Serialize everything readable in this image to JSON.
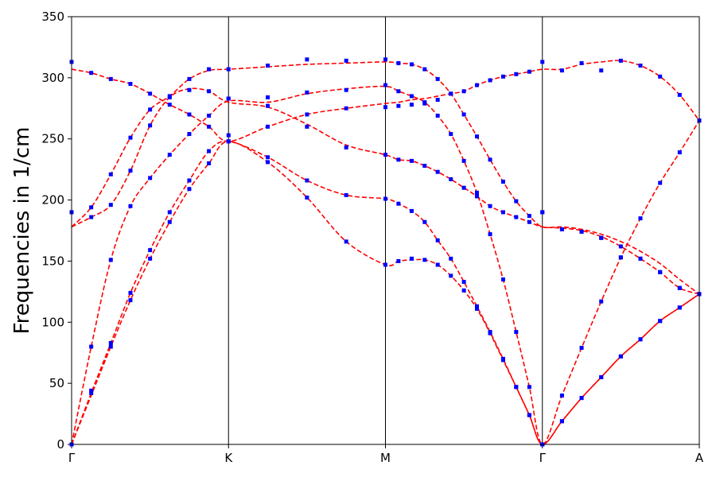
{
  "chart_data": {
    "type": "line",
    "y_label": "Frequencies in 1/cm",
    "x": [
      0,
      0.125,
      0.25,
      0.375,
      0.5,
      0.625,
      0.75,
      0.875,
      1,
      1.25,
      1.5,
      1.75,
      2,
      2.083,
      2.167,
      2.25,
      2.333,
      2.417,
      2.5,
      2.583,
      2.667,
      2.75,
      2.833,
      2.917,
      3,
      3.125,
      3.25,
      3.375,
      3.5,
      3.625,
      3.75,
      3.875,
      4
    ],
    "xlim": [
      0,
      4
    ],
    "xticks": [
      {
        "value": 0,
        "label": "Γ"
      },
      {
        "value": 1,
        "label": "K"
      },
      {
        "value": 2,
        "label": "M"
      },
      {
        "value": 3,
        "label": "Γ"
      },
      {
        "value": 4,
        "label": "A"
      }
    ],
    "ylim": [
      0,
      350
    ],
    "yticks": [
      0,
      50,
      100,
      150,
      200,
      250,
      300,
      350
    ],
    "vertical_lines_at_xticks": true,
    "series": [
      {
        "color": "#ff0000",
        "style": "dashed",
        "values": [
          0,
          40,
          80,
          118,
          152,
          182,
          209,
          230,
          248,
          231,
          202,
          166,
          147,
          150,
          151,
          151,
          147,
          138,
          126,
          111,
          91,
          69,
          47,
          24,
          0,
          19,
          38,
          55,
          72,
          86,
          101,
          112,
          123
        ]
      },
      {
        "color": "#ff0000",
        "style": "dashed",
        "values": [
          0,
          42,
          83,
          124,
          159,
          190,
          216,
          240,
          248,
          235,
          216,
          204,
          201,
          197,
          191,
          182,
          167,
          152,
          133,
          113,
          92,
          70,
          47,
          24,
          0,
          19,
          38,
          55,
          72,
          86,
          101,
          112,
          123
        ]
      },
      {
        "color": "#ff0000",
        "style": "dashed",
        "values": [
          0,
          80,
          151,
          195,
          218,
          237,
          254,
          269,
          281,
          280,
          287,
          291,
          293,
          289,
          285,
          280,
          269,
          254,
          232,
          206,
          172,
          135,
          92,
          47,
          0,
          40,
          79,
          117,
          153,
          185,
          214,
          239,
          265
        ]
      },
      {
        "color": "#ff0000",
        "style": "dashed",
        "values": [
          178,
          186,
          196,
          224,
          261,
          284,
          291,
          289,
          280,
          276,
          262,
          245,
          237,
          233,
          232,
          228,
          223,
          217,
          210,
          203,
          195,
          190,
          186,
          182,
          178,
          177,
          175,
          170,
          162,
          152,
          141,
          128,
          123
        ]
      },
      {
        "color": "#ff0000",
        "style": "dashed",
        "values": [
          178,
          194,
          221,
          251,
          274,
          285,
          299,
          306,
          307,
          309,
          311,
          312,
          313,
          312,
          311,
          307,
          299,
          287,
          270,
          252,
          233,
          215,
          199,
          187,
          178,
          178,
          176,
          172,
          166,
          158,
          148,
          135,
          123
        ]
      },
      {
        "color": "#ff0000",
        "style": "dashed",
        "values": [
          307,
          304,
          299,
          295,
          287,
          278,
          270,
          260,
          248,
          260,
          270,
          275,
          279,
          280,
          282,
          283,
          285,
          287,
          289,
          294,
          298,
          301,
          303,
          305,
          307,
          307,
          311,
          313,
          314,
          310,
          301,
          286,
          265
        ]
      },
      {
        "color": "#0000ff",
        "marker": "square",
        "values": [
          0,
          42,
          80,
          118,
          152,
          182,
          209,
          230,
          248,
          231,
          202,
          166,
          147,
          150,
          152,
          151,
          147,
          138,
          126,
          111,
          91,
          69,
          47,
          24,
          0,
          19,
          38,
          55,
          72,
          86,
          101,
          112,
          123
        ]
      },
      {
        "color": "#0000ff",
        "marker": "square",
        "values": [
          0,
          44,
          83,
          124,
          159,
          190,
          216,
          240,
          248,
          235,
          216,
          204,
          201,
          197,
          191,
          182,
          167,
          152,
          133,
          113,
          92,
          70,
          47,
          24,
          0,
          19,
          38,
          55,
          72,
          86,
          101,
          112,
          123
        ]
      },
      {
        "color": "#0000ff",
        "marker": "square",
        "values": [
          0,
          80,
          151,
          195,
          218,
          237,
          254,
          260,
          253,
          260,
          260,
          243,
          237,
          233,
          232,
          228,
          223,
          217,
          210,
          203,
          172,
          135,
          92,
          47,
          0,
          40,
          79,
          117,
          153,
          152,
          141,
          128,
          123
        ]
      },
      {
        "color": "#0000ff",
        "marker": "square",
        "values": [
          190,
          186,
          196,
          224,
          261,
          278,
          270,
          269,
          283,
          277,
          270,
          275,
          276,
          277,
          278,
          279,
          269,
          254,
          232,
          206,
          195,
          190,
          186,
          182,
          190,
          176,
          174,
          169,
          153,
          152,
          141,
          128,
          123
        ]
      },
      {
        "color": "#0000ff",
        "marker": "square",
        "values": [
          190,
          194,
          221,
          251,
          274,
          284,
          290,
          289,
          283,
          284,
          288,
          290,
          294,
          289,
          285,
          280,
          282,
          287,
          270,
          252,
          233,
          215,
          199,
          187,
          190,
          176,
          174,
          169,
          162,
          185,
          214,
          239,
          265
        ]
      },
      {
        "color": "#0000ff",
        "marker": "square",
        "values": [
          313,
          304,
          299,
          295,
          287,
          285,
          299,
          307,
          307,
          310,
          315,
          314,
          315,
          312,
          311,
          307,
          299,
          287,
          289,
          294,
          298,
          301,
          303,
          305,
          313,
          306,
          312,
          306,
          314,
          310,
          301,
          286,
          265
        ]
      }
    ]
  }
}
